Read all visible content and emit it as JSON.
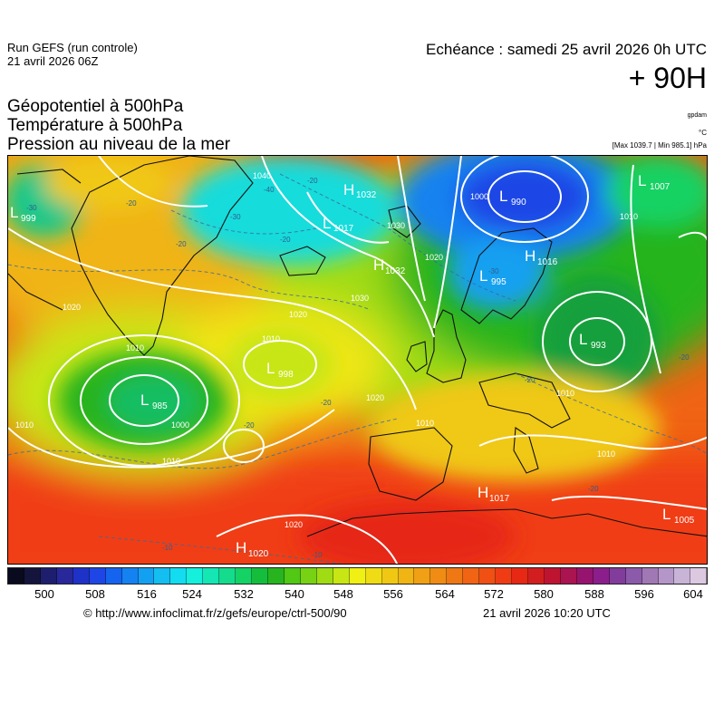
{
  "header": {
    "run_name": "Run GEFS (run controle)",
    "run_date": "21 avril 2026 06Z",
    "validity": "Echéance : samedi 25 avril 2026 0h UTC",
    "lead": "+ 90H",
    "fields": [
      "Géopotentiel à 500hPa",
      "Température à 500hPa",
      "Pression au niveau de la mer"
    ],
    "unit_geopotential": "gpdam",
    "unit_temperature": "°C",
    "minmax": "[Max 1039.7 | Min 985.1] hPa"
  },
  "map": {
    "region": "Europe / North Atlantic",
    "pressure_systems": [
      {
        "type": "H",
        "value": "1032"
      },
      {
        "type": "L",
        "value": "1017"
      },
      {
        "type": "L",
        "value": "990"
      },
      {
        "type": "L",
        "value": "1007"
      },
      {
        "type": "L",
        "value": "999"
      },
      {
        "type": "H",
        "value": "1016"
      },
      {
        "type": "L",
        "value": "995"
      },
      {
        "type": "H",
        "value": "1032"
      },
      {
        "type": "L",
        "value": "993"
      },
      {
        "type": "L",
        "value": "998"
      },
      {
        "type": "L",
        "value": "985"
      },
      {
        "type": "H",
        "value": "1017"
      },
      {
        "type": "L",
        "value": "1005"
      },
      {
        "type": "H",
        "value": "1020"
      }
    ],
    "isobar_labels": [
      "1040",
      "1030",
      "1020",
      "1010",
      "1000",
      "1010",
      "1020",
      "1020",
      "1010",
      "1010",
      "1010",
      "1020",
      "1010",
      "1020",
      "1010",
      "1030",
      "1010",
      "1000"
    ],
    "temperature_labels": [
      "-40",
      "-30",
      "-30",
      "-20",
      "-20",
      "-20",
      "-20",
      "-20",
      "-10",
      "-10",
      "-20",
      "-30",
      "-20",
      "-20",
      "-20"
    ]
  },
  "color_scale": {
    "ticks": [
      "500",
      "508",
      "516",
      "524",
      "532",
      "540",
      "548",
      "556",
      "564",
      "572",
      "580",
      "588",
      "596",
      "604"
    ],
    "colors": [
      "#0a0a1e",
      "#14143c",
      "#1e1e6e",
      "#28289b",
      "#1e32c8",
      "#1e46e6",
      "#1464f0",
      "#1482f0",
      "#14a0f0",
      "#14bef0",
      "#14dcf0",
      "#14f0dc",
      "#14e6b4",
      "#14dc8c",
      "#14d264",
      "#14be3c",
      "#28b41e",
      "#50c814",
      "#78d214",
      "#a0dc14",
      "#c8e614",
      "#f0f014",
      "#f0dc14",
      "#f0c814",
      "#f0b414",
      "#f0a014",
      "#f08c14",
      "#f07814",
      "#f06414",
      "#f05014",
      "#f03c14",
      "#e62814",
      "#d21e1e",
      "#be1432",
      "#aa1450",
      "#96146e",
      "#8c1e8c",
      "#823c9b",
      "#8c5aaa",
      "#a078b4",
      "#b496c8",
      "#c8b4d7",
      "#dcc8e1"
    ]
  },
  "footer": {
    "credit": "© http://www.infoclimat.fr/z/gefs/europe/ctrl-500/90",
    "issued": "21 avril 2026 10:20 UTC"
  }
}
